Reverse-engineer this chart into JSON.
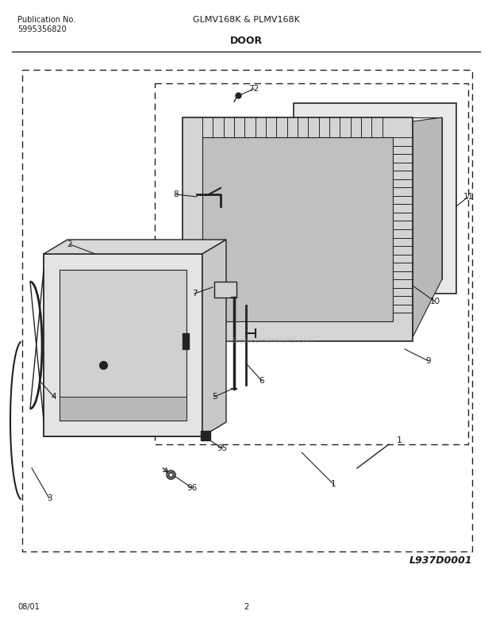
{
  "title_center": "GLMV168K & PLMV168K",
  "title_left1": "Publication No.",
  "title_left2": "5995356820",
  "section_title": "DOOR",
  "diagram_label": "L937D0001",
  "footer_left": "08/01",
  "footer_center": "2",
  "bg_color": "#ffffff",
  "line_color": "#222222",
  "fig_w": 6.2,
  "fig_h": 7.94,
  "dpi": 100
}
